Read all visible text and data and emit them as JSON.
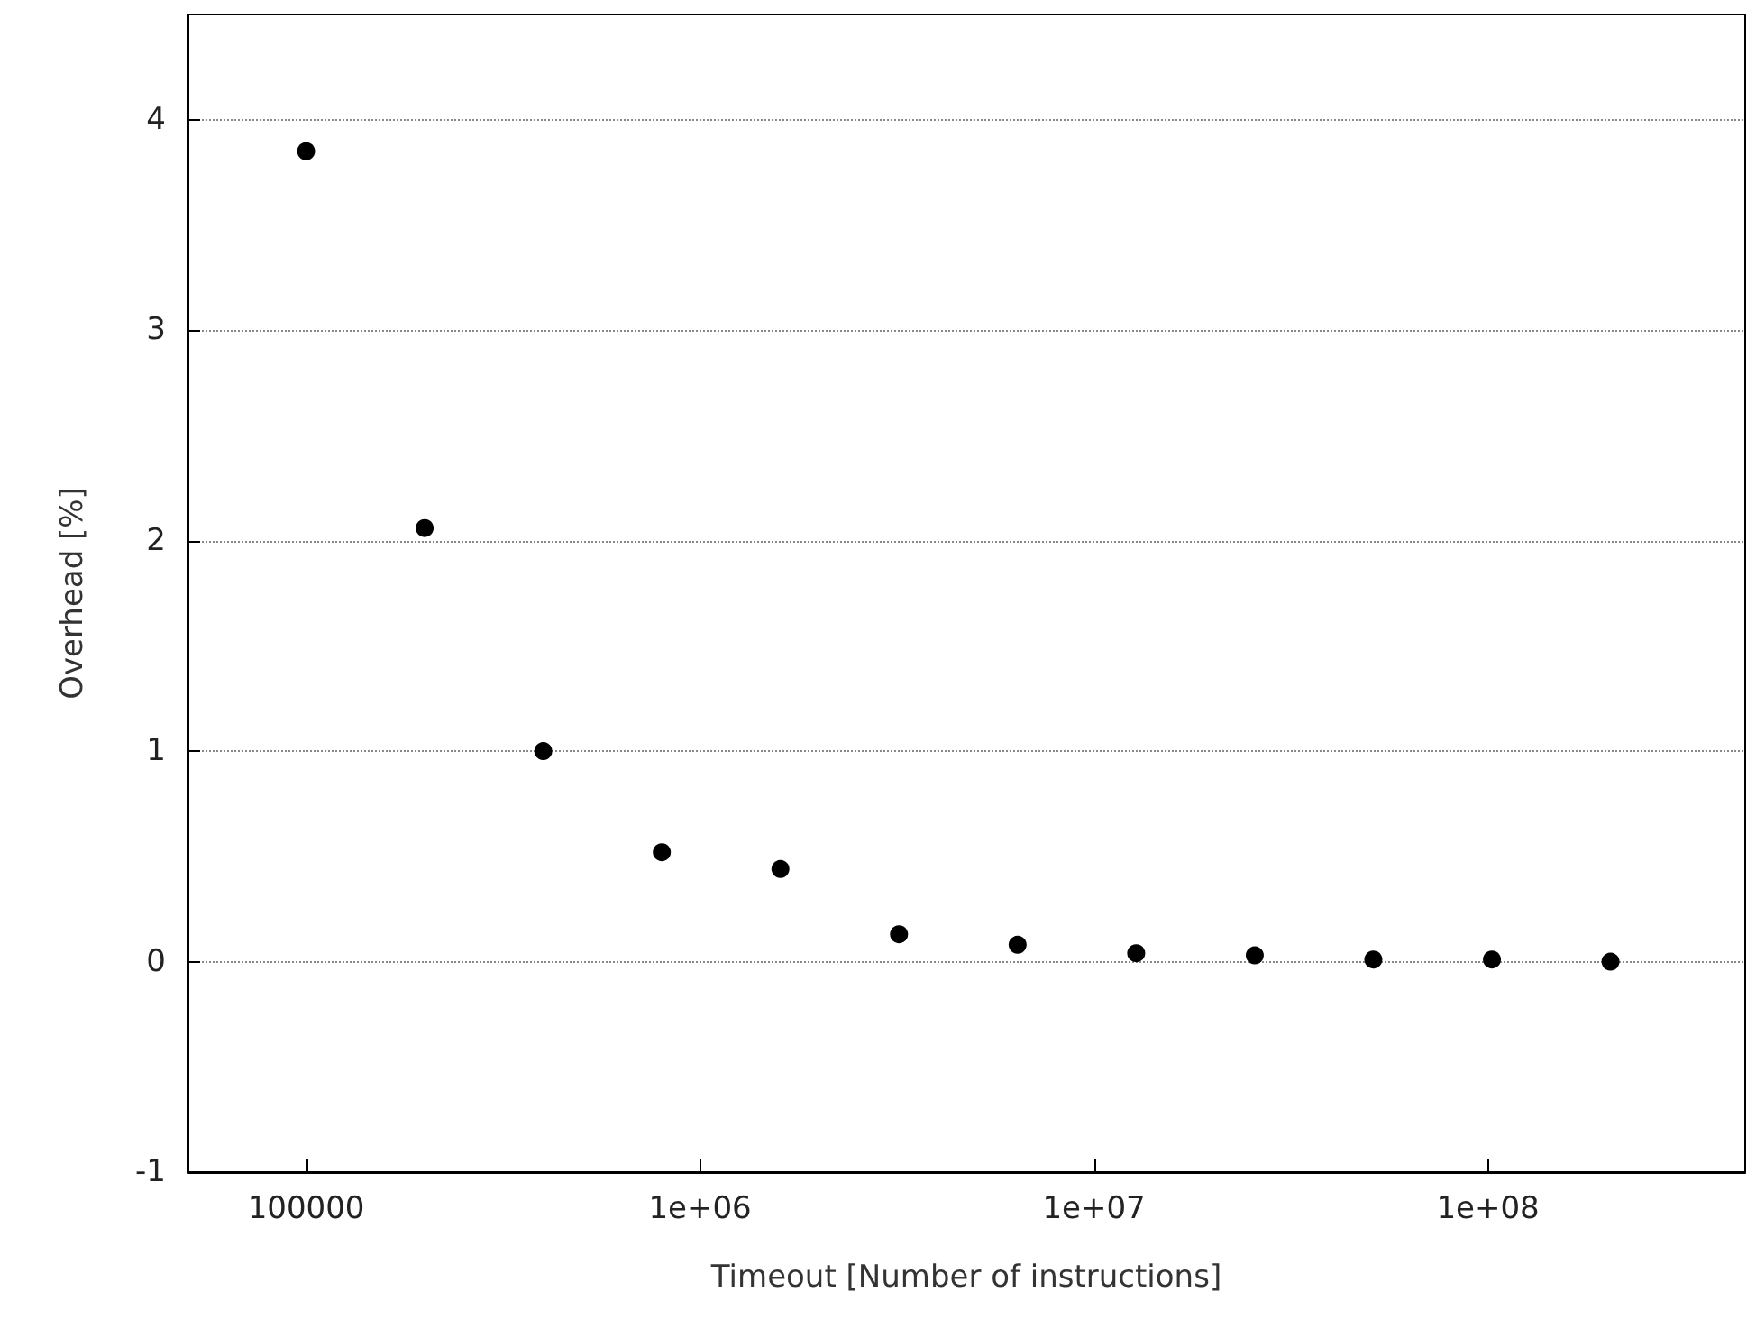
{
  "chart_data": {
    "type": "scatter",
    "xlabel": "Timeout [Number of instructions]",
    "ylabel": "Overhead [%]",
    "x": [
      100000,
      200000,
      400000,
      800000,
      1600000,
      3200000,
      6400000,
      12800000,
      25600000,
      51200000,
      102400000,
      204800000
    ],
    "values": [
      3.85,
      2.06,
      1.0,
      0.52,
      0.44,
      0.13,
      0.08,
      0.04,
      0.03,
      0.01,
      0.01,
      0.0
    ],
    "color": "#000000",
    "marker": "circle",
    "log": "x",
    "xlim": [
      50000,
      450000000
    ],
    "xticks": [
      {
        "value": 100000,
        "label": "100000"
      },
      {
        "value": 1000000,
        "label": "1e+06"
      },
      {
        "value": 10000000,
        "label": "1e+07"
      },
      {
        "value": 100000000,
        "label": "1e+08"
      }
    ],
    "ylim": [
      -1,
      4.5
    ],
    "yticks": [
      -1,
      0,
      1,
      2,
      3,
      4
    ],
    "grid": "y"
  }
}
